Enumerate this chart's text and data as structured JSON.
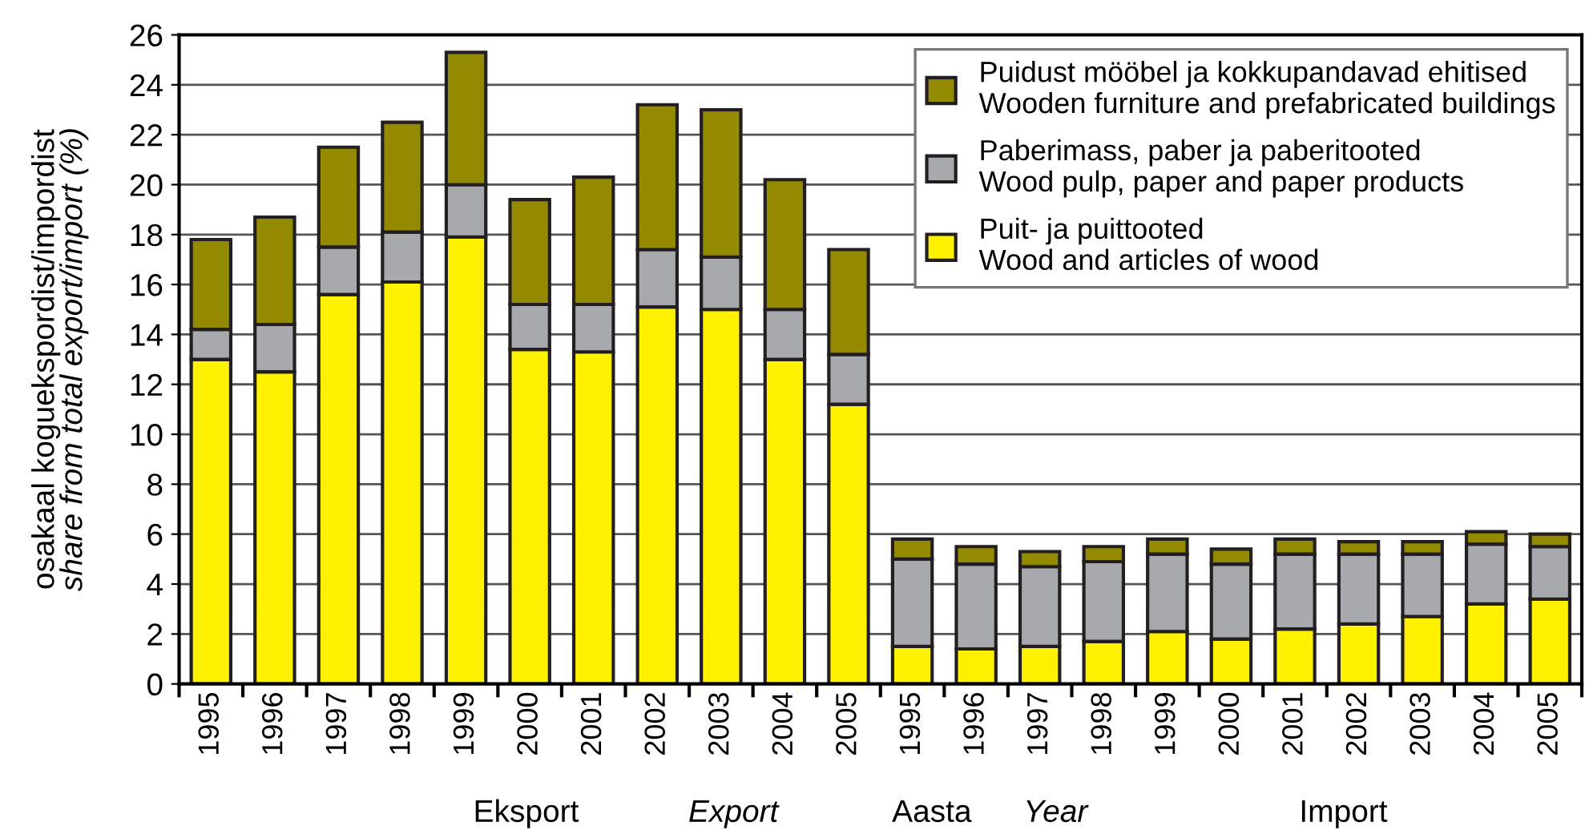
{
  "chart_data": {
    "type": "bar",
    "stacked": true,
    "ylabel": "osakaal koguekspordist/impordist\nshare from total export/import (%)",
    "categories": [
      "1995",
      "1996",
      "1997",
      "1998",
      "1999",
      "2000",
      "2001",
      "2002",
      "2003",
      "2004",
      "2005",
      "1995",
      "1996",
      "1997",
      "1998",
      "1999",
      "2000",
      "2001",
      "2002",
      "2003",
      "2004",
      "2005"
    ],
    "series": [
      {
        "name": "Puit- ja puittooted\nWood and articles of wood",
        "color": "#fff200",
        "values": [
          13.0,
          12.5,
          15.6,
          16.1,
          17.9,
          13.4,
          13.3,
          15.1,
          15.0,
          13.0,
          11.2,
          1.5,
          1.4,
          1.5,
          1.7,
          2.1,
          1.8,
          2.2,
          2.4,
          2.7,
          3.2,
          3.4
        ]
      },
      {
        "name": "Paberimass, paber ja paberitooted\nWood pulp, paper and paper products",
        "color": "#a7a9ac",
        "values": [
          1.2,
          1.9,
          1.9,
          2.0,
          2.1,
          1.8,
          1.9,
          2.3,
          2.1,
          2.0,
          2.0,
          3.5,
          3.4,
          3.2,
          3.2,
          3.1,
          3.0,
          3.0,
          2.8,
          2.5,
          2.4,
          2.1
        ]
      },
      {
        "name": "Puidust mööbel ja kokkupandavad ehitised\nWooden furniture and prefabricated buildings",
        "color": "#948a00",
        "values": [
          3.6,
          4.3,
          4.0,
          4.4,
          5.3,
          4.2,
          5.1,
          5.8,
          5.9,
          5.2,
          4.2,
          0.8,
          0.7,
          0.6,
          0.6,
          0.6,
          0.6,
          0.6,
          0.5,
          0.5,
          0.5,
          0.5
        ]
      }
    ],
    "ylim": [
      0,
      26
    ],
    "yticks": [
      0,
      2,
      4,
      6,
      8,
      10,
      12,
      14,
      16,
      18,
      20,
      22,
      24,
      26
    ],
    "grid": "y",
    "legend": "top right",
    "annotations": [
      "Eksport",
      "Export",
      "Aasta",
      "Year",
      "Import"
    ]
  }
}
